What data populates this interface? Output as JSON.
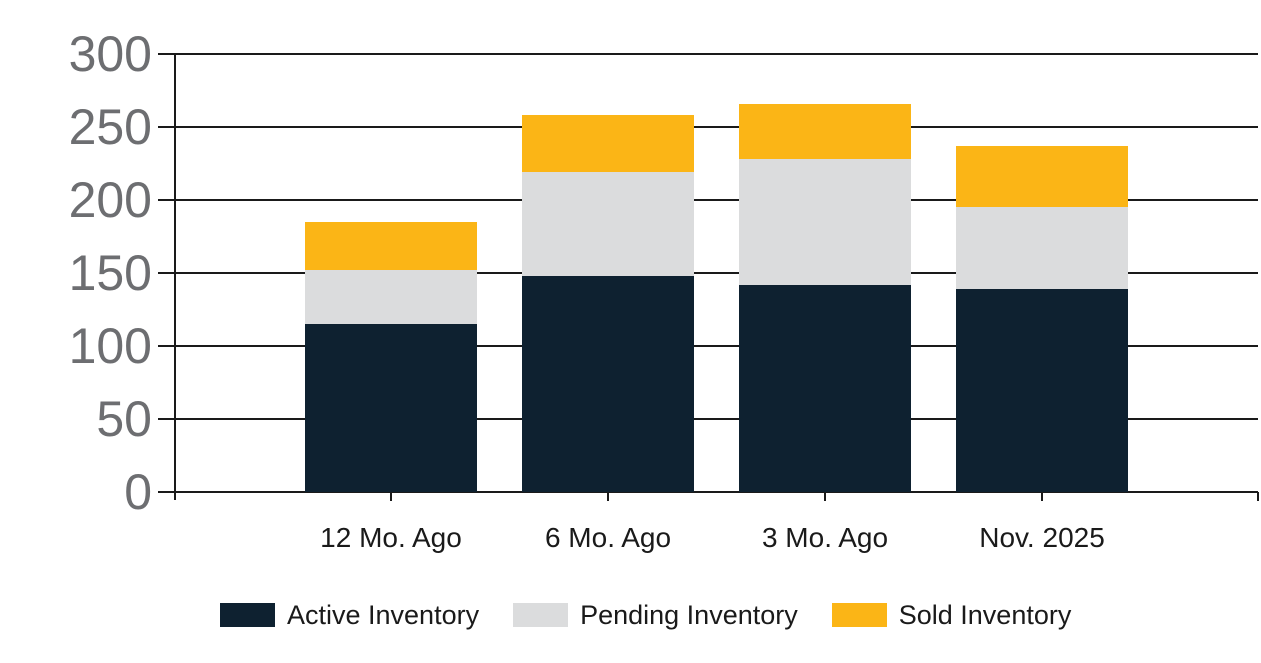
{
  "chart_data": {
    "type": "bar",
    "stacked": true,
    "title": "",
    "xlabel": "",
    "ylabel": "",
    "categories": [
      "12 Mo. Ago",
      "6 Mo. Ago",
      "3 Mo. Ago",
      "Nov. 2025"
    ],
    "series": [
      {
        "name": "Active Inventory",
        "color": "#0e2130",
        "values": [
          115,
          148,
          142,
          139
        ]
      },
      {
        "name": "Pending Inventory",
        "color": "#dbdcdd",
        "values": [
          37,
          71,
          86,
          56
        ]
      },
      {
        "name": "Sold Inventory",
        "color": "#fbb516",
        "values": [
          33,
          39,
          38,
          42
        ]
      }
    ],
    "stack_totals": [
      185,
      258,
      266,
      237
    ],
    "y_ticks": [
      0,
      50,
      100,
      150,
      200,
      250,
      300
    ],
    "ylim": [
      0,
      300
    ],
    "grid": "horizontal",
    "legend_position": "bottom-left"
  },
  "colors": {
    "background": "#ffffff",
    "grid_line": "#1a1a1a",
    "y_tick_label": "#6d6e71",
    "x_tick_label": "#1a1a1a",
    "legend_text": "#1a1a1a"
  }
}
